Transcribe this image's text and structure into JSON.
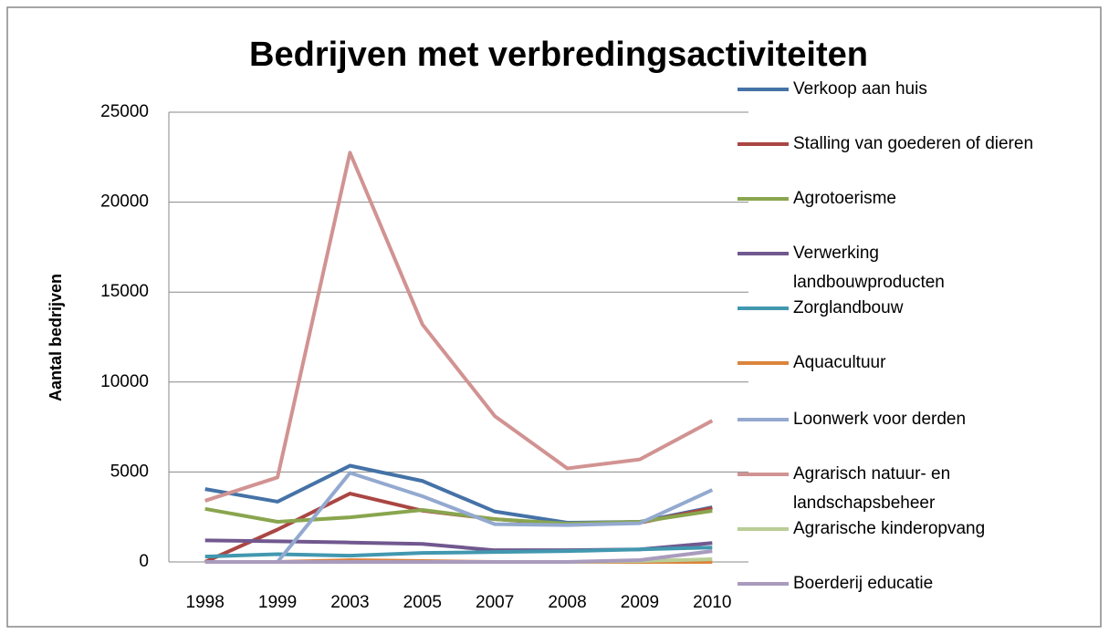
{
  "chart_data": {
    "type": "line",
    "title": "Bedrijven met verbredingsactiviteiten",
    "y_label": "Aantal bedrijven",
    "categories": [
      "1998",
      "1999",
      "2003",
      "2005",
      "2007",
      "2008",
      "2009",
      "2010"
    ],
    "ylim": [
      0,
      25000
    ],
    "yticks": [
      0,
      5000,
      10000,
      15000,
      20000,
      25000
    ],
    "grid": true,
    "legend": "right",
    "series": [
      {
        "name": "Verkoop aan huis",
        "color": "#4572a7",
        "values": [
          4050,
          3350,
          5350,
          4500,
          2800,
          2180,
          2230,
          3040
        ]
      },
      {
        "name": "Stalling van goederen of dieren",
        "color": "#aa4643",
        "values": [
          0,
          1800,
          3800,
          2850,
          2380,
          2080,
          2180,
          2990
        ]
      },
      {
        "name": "Agrotoerisme",
        "color": "#89a54e",
        "values": [
          2950,
          2230,
          2480,
          2890,
          2380,
          2130,
          2230,
          2840
        ]
      },
      {
        "name": "Verwerking landbouwproducten",
        "color": "#71588f",
        "values": [
          1200,
          1150,
          1080,
          1000,
          650,
          650,
          700,
          1050
        ]
      },
      {
        "name": "Zorglandbouw",
        "color": "#4198af",
        "values": [
          300,
          430,
          350,
          500,
          550,
          600,
          700,
          800
        ]
      },
      {
        "name": "Aquacultuur",
        "color": "#db843d",
        "values": [
          0,
          0,
          100,
          50,
          0,
          0,
          0,
          0
        ]
      },
      {
        "name": "Loonwerk voor derden",
        "color": "#93a9cf",
        "values": [
          0,
          0,
          4950,
          3650,
          2100,
          2050,
          2150,
          4000
        ]
      },
      {
        "name": "Agrarisch natuur- en landschapsbeheer",
        "color": "#d19392",
        "values": [
          3400,
          4700,
          22750,
          13200,
          8100,
          5200,
          5700,
          7850
        ]
      },
      {
        "name": "Agrarische kinderopvang",
        "color": "#b9cd96",
        "values": [
          0,
          0,
          0,
          0,
          0,
          0,
          50,
          150
        ]
      },
      {
        "name": "Boerderij educatie",
        "color": "#a99bbd",
        "values": [
          0,
          0,
          0,
          0,
          0,
          0,
          100,
          600
        ]
      }
    ]
  }
}
